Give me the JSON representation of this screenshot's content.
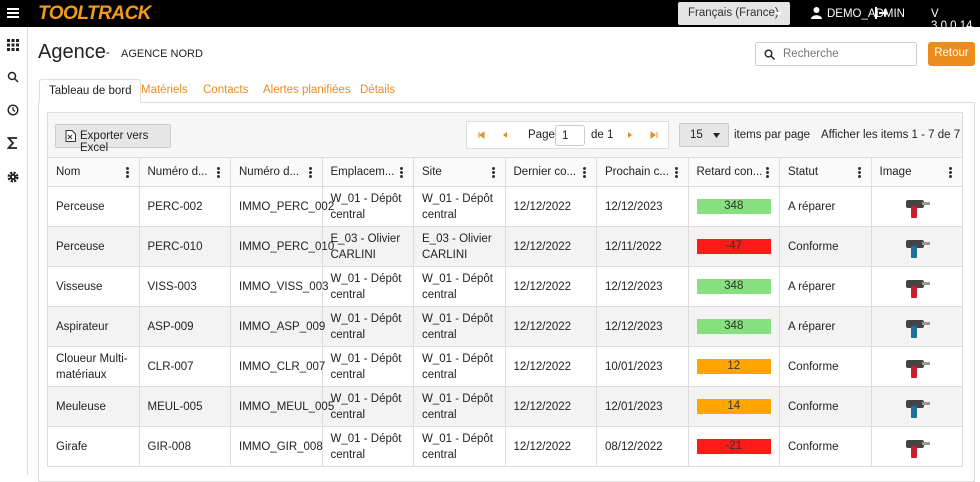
{
  "header": {
    "logo": "TOOLTRACK",
    "language": "Français (France)",
    "user": "DEMO_ADMIN",
    "version": "V 3.0.0.14"
  },
  "page": {
    "title": "Agence",
    "separator": "-",
    "subtitle": "AGENCE NORD",
    "search_placeholder": "Recherche",
    "back_button": "Retour"
  },
  "tabs": [
    "Tableau de bord",
    "Matériels",
    "Contacts",
    "Alertes planifiées",
    "Détails"
  ],
  "toolbar": {
    "export": "Exporter vers Excel",
    "page_label": "Page",
    "page": 1,
    "page_of": "de 1",
    "page_size": 15,
    "page_size_label": "items par page",
    "summary": "Afficher les items 1 - 7 de 7"
  },
  "table": {
    "columns": [
      "Nom",
      "Numéro d...",
      "Numéro d...",
      "Emplacem...",
      "Site",
      "Dernier co...",
      "Prochain c...",
      "Retard con...",
      "Statut",
      "Image"
    ],
    "rows": [
      [
        "Perceuse",
        "PERC-002",
        "IMMO_PERC_002",
        "W_01 - Dépôt central",
        "W_01 - Dépôt central",
        "12/12/2022",
        "12/12/2023",
        348,
        "A réparer"
      ],
      [
        "Perceuse",
        "PERC-010",
        "IMMO_PERC_010",
        "E_03 - Olivier CARLINI",
        "E_03 - Olivier CARLINI",
        "12/12/2022",
        "12/11/2022",
        -47,
        "Conforme"
      ],
      [
        "Visseuse",
        "VISS-003",
        "IMMO_VISS_003",
        "W_01 - Dépôt central",
        "W_01 - Dépôt central",
        "12/12/2022",
        "12/12/2023",
        348,
        "A réparer"
      ],
      [
        "Aspirateur",
        "ASP-009",
        "IMMO_ASP_009",
        "W_01 - Dépôt central",
        "W_01 - Dépôt central",
        "12/12/2022",
        "12/12/2023",
        348,
        "A réparer"
      ],
      [
        "Cloueur Multi-matériaux",
        "CLR-007",
        "IMMO_CLR_007",
        "W_01 - Dépôt central",
        "W_01 - Dépôt central",
        "12/12/2022",
        "10/01/2023",
        12,
        "Conforme"
      ],
      [
        "Meuleuse",
        "MEUL-005",
        "IMMO_MEUL_005",
        "W_01 - Dépôt central",
        "W_01 - Dépôt central",
        "12/12/2022",
        "12/01/2023",
        14,
        "Conforme"
      ],
      [
        "Girafe",
        "GIR-008",
        "IMMO_GIR_008",
        "W_01 - Dépôt central",
        "W_01 - Dépôt central",
        "12/12/2022",
        "08/12/2022",
        -21,
        "Conforme"
      ]
    ],
    "retard_colors": [
      "#86e07f",
      "#ff1a1a",
      "#86e07f",
      "#86e07f",
      "#ffa500",
      "#ffa500",
      "#ff1a1a"
    ]
  }
}
